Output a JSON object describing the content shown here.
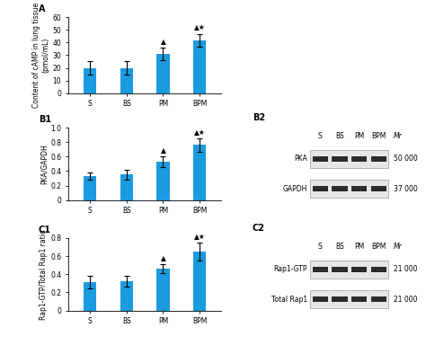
{
  "chart_data": [
    {
      "label": "A",
      "type": "bar",
      "y_label": "Content of cAMP in lung tissue (pmol/mL)",
      "categories": [
        "S",
        "BS",
        "PM",
        "BPM"
      ],
      "values": [
        20,
        20,
        31,
        42
      ],
      "errors": [
        5,
        5,
        5,
        5
      ],
      "annotations": [
        null,
        null,
        "▲",
        "▲★"
      ],
      "color": "#1a9be0",
      "ylim": [
        0,
        60
      ],
      "yticks": [
        0,
        10,
        20,
        30,
        40,
        50,
        60
      ]
    },
    {
      "label": "B1",
      "type": "bar",
      "y_label": "PKA/GAPDH",
      "categories": [
        "S",
        "BS",
        "PM",
        "BPM"
      ],
      "values": [
        0.33,
        0.35,
        0.53,
        0.76
      ],
      "errors": [
        0.05,
        0.07,
        0.07,
        0.09
      ],
      "annotations": [
        null,
        null,
        "▲",
        "▲★"
      ],
      "color": "#1a9be0",
      "ylim": [
        0,
        1.0
      ],
      "yticks": [
        0,
        0.2,
        0.4,
        0.6,
        0.8,
        1.0
      ]
    },
    {
      "label": "C1",
      "type": "bar",
      "y_label": "Rap1-GTP/Total Rap1 ratio",
      "categories": [
        "S",
        "BS",
        "PM",
        "BPM"
      ],
      "values": [
        0.31,
        0.32,
        0.46,
        0.65
      ],
      "errors": [
        0.07,
        0.06,
        0.05,
        0.1
      ],
      "annotations": [
        null,
        null,
        "▲",
        "▲★"
      ],
      "color": "#1a9be0",
      "ylim": [
        0,
        0.8
      ],
      "yticks": [
        0,
        0.2,
        0.4,
        0.6,
        0.8
      ]
    }
  ],
  "blots": [
    {
      "label": "B2",
      "lanes": [
        "S",
        "BS",
        "PM",
        "BPM"
      ],
      "mr_heading": "Mr",
      "rows": [
        {
          "name": "PKA",
          "mr": "50 000"
        },
        {
          "name": "GAPDH",
          "mr": "37 000"
        }
      ]
    },
    {
      "label": "C2",
      "lanes": [
        "S",
        "BS",
        "PM",
        "BPM"
      ],
      "mr_heading": "Mr",
      "rows": [
        {
          "name": "Rap1-GTP",
          "mr": "21 000"
        },
        {
          "name": "Total Rap1",
          "mr": "21 000"
        }
      ]
    }
  ]
}
